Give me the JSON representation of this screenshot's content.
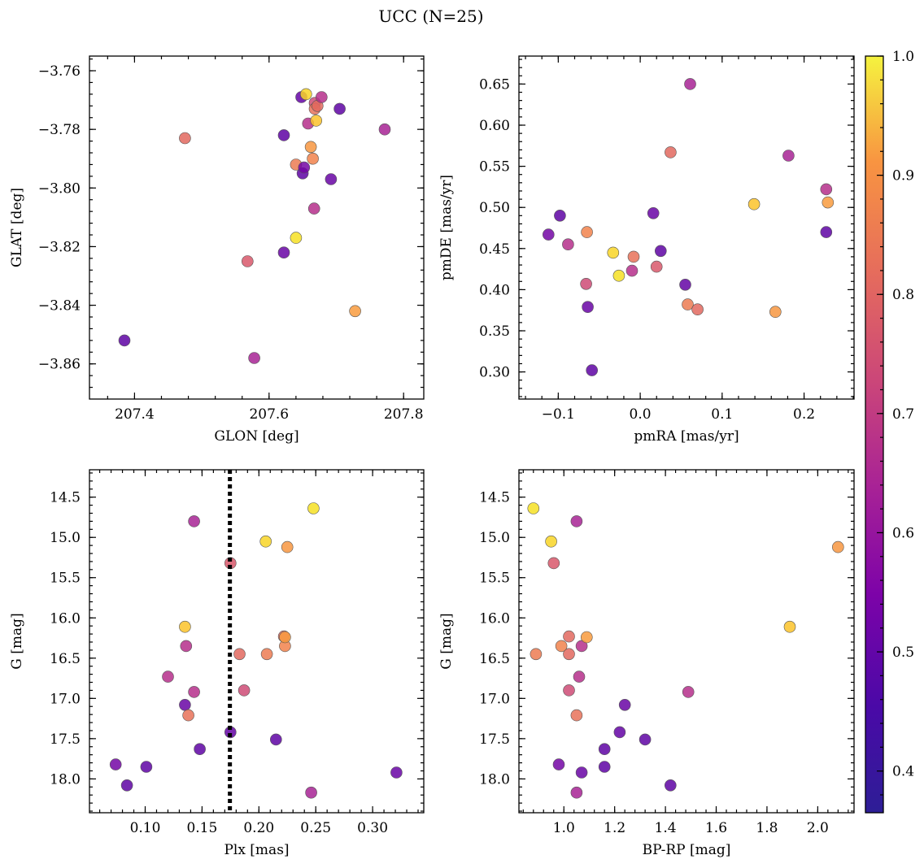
{
  "chart_data": {
    "title": "UCC (N=25)",
    "colorbar": {
      "min": 0.365,
      "max": 1.0,
      "ticks": [
        "0.4",
        "0.5",
        "0.6",
        "0.7",
        "0.8",
        "0.9",
        "1.0"
      ],
      "tick_values": [
        0.4,
        0.5,
        0.6,
        0.7,
        0.8,
        0.9,
        1.0
      ],
      "colormap": "plasma"
    },
    "stars": [
      {
        "glon": 207.475,
        "glat": -3.783,
        "pmra": 0.037,
        "pmde": 0.567,
        "plx": 0.183,
        "g": 16.45,
        "bprp": 1.02,
        "prob": 0.72
      },
      {
        "glon": 207.385,
        "glat": -3.852,
        "pmra": -0.098,
        "pmde": 0.49,
        "plx": 0.101,
        "g": 17.85,
        "bprp": 1.16,
        "prob": 0.4
      },
      {
        "glon": 207.578,
        "glat": -3.858,
        "pmra": 0.181,
        "pmde": 0.563,
        "plx": 0.246,
        "g": 18.17,
        "bprp": 1.05,
        "prob": 0.55
      },
      {
        "glon": 207.568,
        "glat": -3.825,
        "pmra": 0.02,
        "pmde": 0.428,
        "plx": 0.175,
        "g": 15.32,
        "bprp": 0.96,
        "prob": 0.68
      },
      {
        "glon": 207.622,
        "glat": -3.822,
        "pmra": -0.064,
        "pmde": 0.379,
        "plx": 0.135,
        "g": 17.08,
        "bprp": 1.24,
        "prob": 0.42
      },
      {
        "glon": 207.622,
        "glat": -3.782,
        "pmra": 0.025,
        "pmde": 0.447,
        "plx": 0.215,
        "g": 17.51,
        "bprp": 1.32,
        "prob": 0.4
      },
      {
        "glon": 207.64,
        "glat": -3.817,
        "pmra": -0.026,
        "pmde": 0.417,
        "plx": 0.248,
        "g": 14.64,
        "bprp": 0.88,
        "prob": 0.96
      },
      {
        "glon": 207.64,
        "glat": -3.792,
        "pmra": 0.058,
        "pmde": 0.382,
        "plx": 0.207,
        "g": 16.45,
        "bprp": 0.89,
        "prob": 0.76
      },
      {
        "glon": 207.648,
        "glat": -3.769,
        "pmra": 0.055,
        "pmde": 0.406,
        "plx": 0.175,
        "g": 17.42,
        "bprp": 1.22,
        "prob": 0.41
      },
      {
        "glon": 207.65,
        "glat": -3.795,
        "pmra": -0.059,
        "pmde": 0.302,
        "plx": 0.148,
        "g": 17.63,
        "bprp": 1.16,
        "prob": 0.4
      },
      {
        "glon": 207.652,
        "glat": -3.793,
        "pmra": -0.112,
        "pmde": 0.467,
        "plx": 0.074,
        "g": 17.82,
        "bprp": 0.98,
        "prob": 0.44
      },
      {
        "glon": 207.655,
        "glat": -3.768,
        "pmra": -0.033,
        "pmde": 0.445,
        "plx": 0.206,
        "g": 15.05,
        "bprp": 0.95,
        "prob": 0.94
      },
      {
        "glon": 207.658,
        "glat": -3.778,
        "pmra": -0.088,
        "pmde": 0.455,
        "plx": 0.12,
        "g": 16.73,
        "bprp": 1.06,
        "prob": 0.58
      },
      {
        "glon": 207.662,
        "glat": -3.786,
        "pmra": 0.165,
        "pmde": 0.373,
        "plx": 0.225,
        "g": 15.12,
        "bprp": 2.08,
        "prob": 0.82
      },
      {
        "glon": 207.665,
        "glat": -3.79,
        "pmra": -0.065,
        "pmde": 0.47,
        "plx": 0.223,
        "g": 16.35,
        "bprp": 0.99,
        "prob": 0.78
      },
      {
        "glon": 207.667,
        "glat": -3.807,
        "pmra": -0.01,
        "pmde": 0.423,
        "plx": 0.143,
        "g": 16.92,
        "bprp": 1.49,
        "prob": 0.58
      },
      {
        "glon": 207.668,
        "glat": -3.771,
        "pmra": -0.066,
        "pmde": 0.407,
        "plx": 0.187,
        "g": 16.9,
        "bprp": 1.02,
        "prob": 0.65
      },
      {
        "glon": 207.668,
        "glat": -3.773,
        "pmra": -0.008,
        "pmde": 0.44,
        "plx": 0.138,
        "g": 17.21,
        "bprp": 1.05,
        "prob": 0.74
      },
      {
        "glon": 207.67,
        "glat": -3.777,
        "pmra": 0.139,
        "pmde": 0.504,
        "plx": 0.135,
        "g": 16.11,
        "bprp": 1.89,
        "prob": 0.91
      },
      {
        "glon": 207.672,
        "glat": -3.772,
        "pmra": 0.07,
        "pmde": 0.376,
        "plx": 0.222,
        "g": 16.23,
        "bprp": 1.02,
        "prob": 0.72
      },
      {
        "glon": 207.678,
        "glat": -3.769,
        "pmra": 0.227,
        "pmde": 0.522,
        "plx": 0.136,
        "g": 16.35,
        "bprp": 1.07,
        "prob": 0.58
      },
      {
        "glon": 207.692,
        "glat": -3.797,
        "pmra": 0.016,
        "pmde": 0.493,
        "plx": 0.321,
        "g": 17.92,
        "bprp": 1.07,
        "prob": 0.42
      },
      {
        "glon": 207.705,
        "glat": -3.773,
        "pmra": 0.227,
        "pmde": 0.47,
        "plx": 0.084,
        "g": 18.08,
        "bprp": 1.42,
        "prob": 0.4
      },
      {
        "glon": 207.728,
        "glat": -3.842,
        "pmra": 0.229,
        "pmde": 0.506,
        "plx": 0.223,
        "g": 16.24,
        "bprp": 1.09,
        "prob": 0.83
      },
      {
        "glon": 207.772,
        "glat": -3.78,
        "pmra": 0.061,
        "pmde": 0.65,
        "plx": 0.143,
        "g": 14.8,
        "bprp": 1.05,
        "prob": 0.55
      }
    ],
    "panels": [
      {
        "type": "scatter",
        "x_key": "glon",
        "y_key": "glat",
        "xlabel": "GLON [deg]",
        "ylabel": "GLAT [deg]",
        "xlim": [
          207.333,
          207.83
        ],
        "ylim": [
          -3.872,
          -3.755
        ],
        "xticks": [
          207.4,
          207.6,
          207.8
        ],
        "xtick_labels": [
          "207.4",
          "207.6",
          "207.8"
        ],
        "yticks": [
          -3.76,
          -3.78,
          -3.8,
          -3.82,
          -3.84,
          -3.86
        ],
        "ytick_labels": [
          "−3.76",
          "−3.78",
          "−3.80",
          "−3.82",
          "−3.84",
          "−3.86"
        ],
        "y_inverted": false,
        "vline": null
      },
      {
        "type": "scatter",
        "x_key": "pmra",
        "y_key": "pmde",
        "xlabel": "pmRA [mas/yr]",
        "ylabel": "pmDE [mas/yr]",
        "xlim": [
          -0.148,
          0.261
        ],
        "ylim": [
          0.267,
          0.684
        ],
        "xticks": [
          -0.1,
          0.0,
          0.1,
          0.2
        ],
        "xtick_labels": [
          "−0.1",
          "0.0",
          "0.1",
          "0.2"
        ],
        "yticks": [
          0.3,
          0.35,
          0.4,
          0.45,
          0.5,
          0.55,
          0.6,
          0.65
        ],
        "ytick_labels": [
          "0.30",
          "0.35",
          "0.40",
          "0.45",
          "0.50",
          "0.55",
          "0.60",
          "0.65"
        ],
        "y_inverted": false,
        "vline": null
      },
      {
        "type": "scatter",
        "x_key": "plx",
        "y_key": "g",
        "xlabel": "Plx [mas]",
        "ylabel": "G [mag]",
        "xlim": [
          0.051,
          0.345
        ],
        "ylim": [
          18.42,
          14.16
        ],
        "xticks": [
          0.1,
          0.15,
          0.2,
          0.25,
          0.3
        ],
        "xtick_labels": [
          "0.10",
          "0.15",
          "0.20",
          "0.25",
          "0.30"
        ],
        "yticks": [
          14.5,
          15.0,
          15.5,
          16.0,
          16.5,
          17.0,
          17.5,
          18.0
        ],
        "ytick_labels": [
          "14.5",
          "15.0",
          "15.5",
          "16.0",
          "16.5",
          "17.0",
          "17.5",
          "18.0"
        ],
        "y_inverted": true,
        "vline": 0.1745
      },
      {
        "type": "scatter",
        "x_key": "bprp",
        "y_key": "g",
        "xlabel": "BP-RP [mag]",
        "ylabel": "G [mag]",
        "xlim": [
          0.823,
          2.143
        ],
        "ylim": [
          18.42,
          14.16
        ],
        "xticks": [
          1.0,
          1.2,
          1.4,
          1.6,
          1.8,
          2.0
        ],
        "xtick_labels": [
          "1.0",
          "1.2",
          "1.4",
          "1.6",
          "1.8",
          "2.0"
        ],
        "yticks": [
          14.5,
          15.0,
          15.5,
          16.0,
          16.5,
          17.0,
          17.5,
          18.0
        ],
        "ytick_labels": [
          "14.5",
          "15.0",
          "15.5",
          "16.0",
          "16.5",
          "17.0",
          "17.5",
          "18.0"
        ],
        "y_inverted": true,
        "vline": null
      }
    ]
  }
}
